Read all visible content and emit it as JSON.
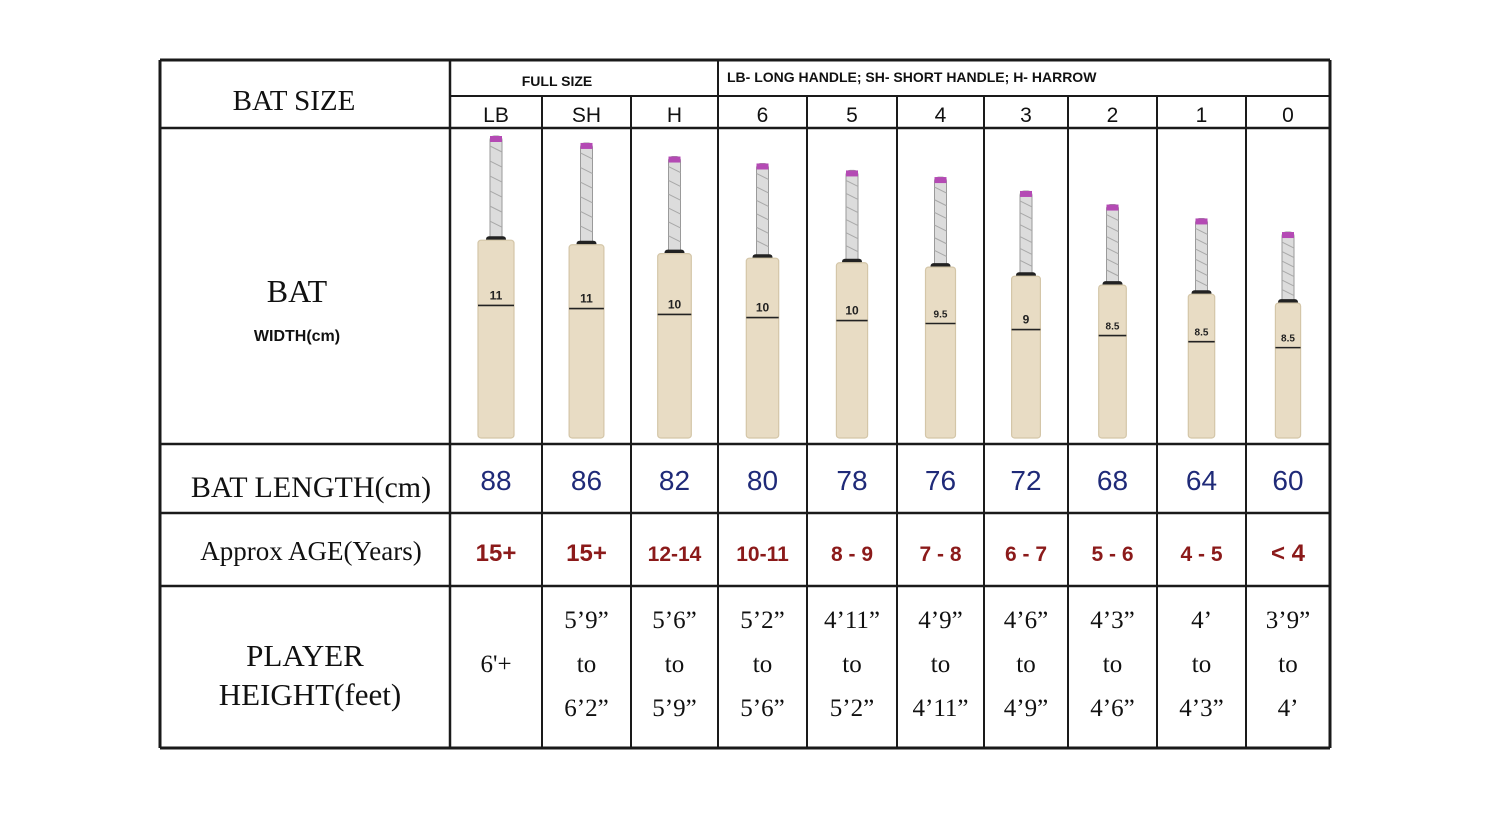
{
  "table": {
    "row_labels": {
      "bat_size": "BAT SIZE",
      "bat": "BAT",
      "width": "WIDTH(cm)",
      "bat_length": "BAT LENGTH(cm)",
      "approx_age": "Approx AGE(Years)",
      "player_height_1": "PLAYER",
      "player_height_2": "HEIGHT(feet)"
    },
    "group_headers": {
      "full_size": "FULL SIZE",
      "legend": "LB- LONG HANDLE; SH- SHORT HANDLE; H- HARROW"
    },
    "columns": [
      {
        "size": "LB",
        "width": "11",
        "length": "88",
        "age": "15+",
        "height": [
          "6'+"
        ],
        "bat_length_fraction": 1.0
      },
      {
        "size": "SH",
        "width": "11",
        "length": "86",
        "age": "15+",
        "height": [
          "5’9”",
          "to",
          "6’2”"
        ],
        "bat_length_fraction": 0.977
      },
      {
        "size": "H",
        "width": "10",
        "length": "82",
        "age": "12-14",
        "height": [
          "5’6”",
          "to",
          "5’9”"
        ],
        "bat_length_fraction": 0.932
      },
      {
        "size": "6",
        "width": "10",
        "length": "80",
        "age": "10-11",
        "height": [
          "5’2”",
          "to",
          "5’6”"
        ],
        "bat_length_fraction": 0.909
      },
      {
        "size": "5",
        "width": "10",
        "length": "78",
        "age": "8 - 9",
        "height": [
          "4’11”",
          "to",
          "5’2”"
        ],
        "bat_length_fraction": 0.886
      },
      {
        "size": "4",
        "width": "9.5",
        "length": "76",
        "age": "7 - 8",
        "height": [
          "4’9”",
          "to",
          "4’11”"
        ],
        "bat_length_fraction": 0.864
      },
      {
        "size": "3",
        "width": "9",
        "length": "72",
        "age": "6 - 7",
        "height": [
          "4’6”",
          "to",
          "4’9”"
        ],
        "bat_length_fraction": 0.818
      },
      {
        "size": "2",
        "width": "8.5",
        "length": "68",
        "age": "5 - 6",
        "height": [
          "4’3”",
          "to",
          "4’6”"
        ],
        "bat_length_fraction": 0.773
      },
      {
        "size": "1",
        "width": "8.5",
        "length": "64",
        "age": "4 - 5",
        "height": [
          "4’",
          "to",
          "4’3”"
        ],
        "bat_length_fraction": 0.727
      },
      {
        "size": "0",
        "width": "8.5",
        "length": "60",
        "age": "< 4",
        "height": [
          "3’9”",
          "to",
          "4’"
        ],
        "bat_length_fraction": 0.682
      }
    ]
  },
  "colors": {
    "grid": "#1a1a1a",
    "length_text": "#1f2a78",
    "age_text": "#8b1a1a",
    "blade": "#e8dcc4",
    "blade_edge": "#d4c6a8",
    "grip": "#dcdcdc",
    "grip_band": "#b44ab4",
    "label_text": "#111111"
  }
}
